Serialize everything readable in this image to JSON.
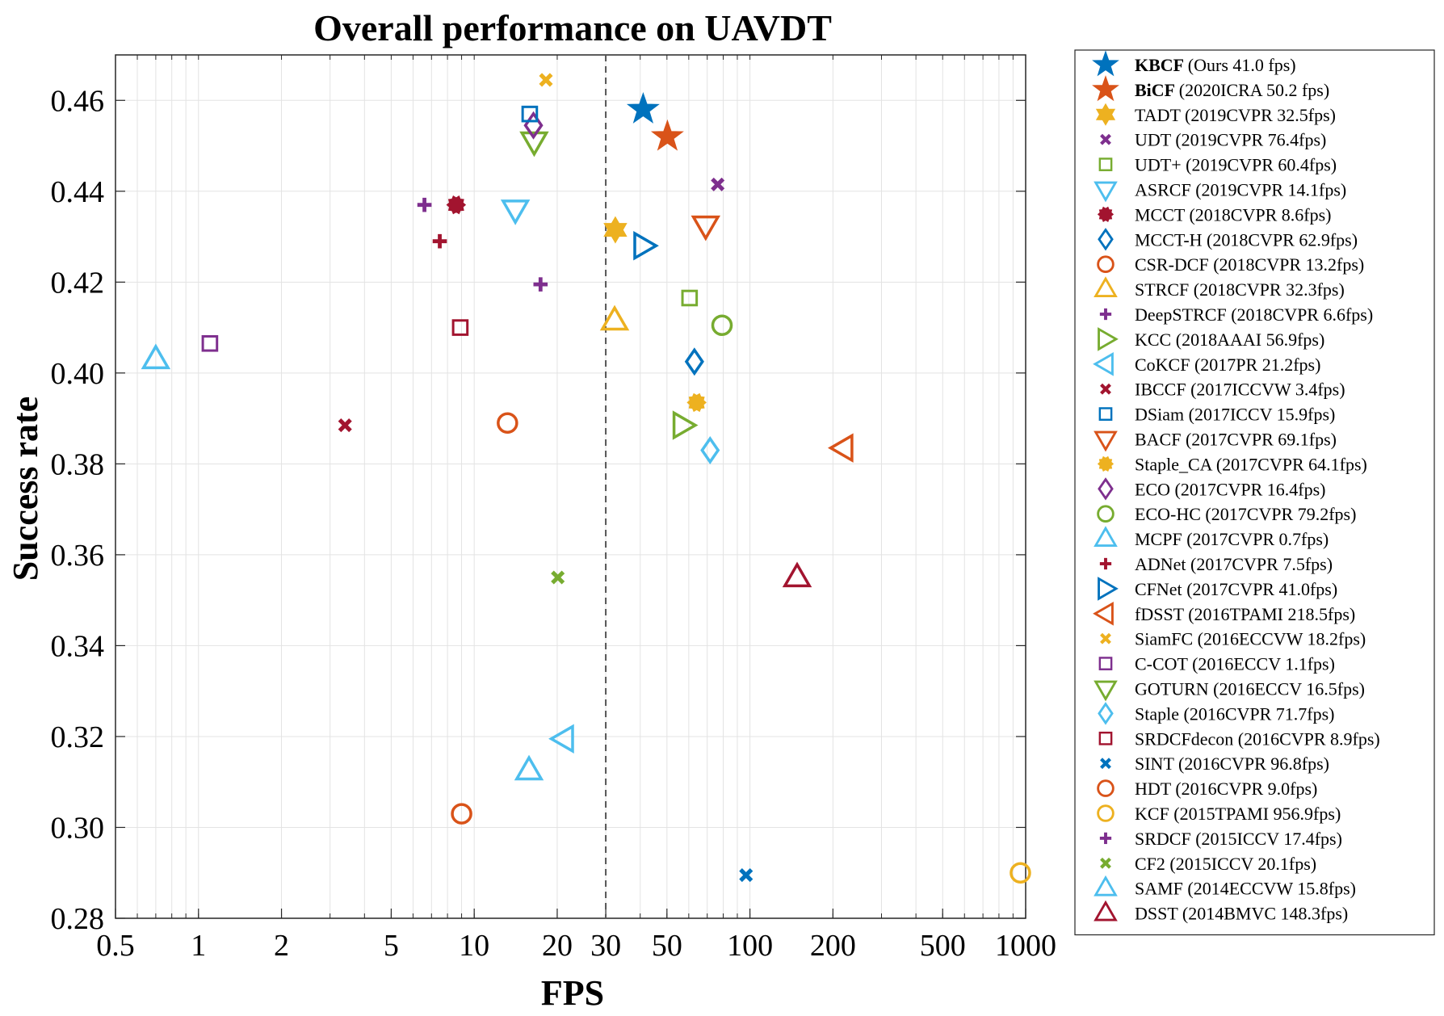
{
  "chart_data": {
    "type": "scatter",
    "title": "Overall performance on UAVDT",
    "xlabel": "FPS",
    "ylabel": "Success rate",
    "xscale": "log",
    "xlim": [
      0.5,
      1000
    ],
    "ylim": [
      0.28,
      0.47
    ],
    "xticks": [
      "0.5",
      "1",
      "2",
      "5",
      "10",
      "20",
      "30",
      "50",
      "100",
      "200",
      "500",
      "1000"
    ],
    "xtick_values": [
      0.5,
      1,
      2,
      5,
      10,
      20,
      30,
      50,
      100,
      200,
      500,
      1000
    ],
    "yticks": [
      "0.28",
      "0.30",
      "0.32",
      "0.34",
      "0.36",
      "0.38",
      "0.40",
      "0.42",
      "0.44",
      "0.46"
    ],
    "ytick_values": [
      0.28,
      0.3,
      0.32,
      0.34,
      0.36,
      0.38,
      0.4,
      0.42,
      0.44,
      0.46
    ],
    "grid": true,
    "reference_line": {
      "x": 30,
      "style": "dashed"
    },
    "legend_position": "outside-right",
    "series": [
      {
        "name": "KBCF",
        "label": "(Ours 41.0 fps)",
        "bold": true,
        "marker": "star",
        "color": "#0072BD",
        "x": 41.0,
        "y": 0.458
      },
      {
        "name": "BiCF",
        "label": "(2020ICRA 50.2 fps)",
        "bold": true,
        "marker": "star",
        "color": "#D95319",
        "x": 50.2,
        "y": 0.452
      },
      {
        "name": "TADT",
        "label": "(2019CVPR 32.5fps)",
        "marker": "hexagram",
        "color": "#EDB120",
        "x": 32.5,
        "y": 0.4315
      },
      {
        "name": "UDT",
        "label": "(2019CVPR 76.4fps)",
        "marker": "x",
        "color": "#7E2F8E",
        "x": 76.4,
        "y": 0.4415
      },
      {
        "name": "UDT+",
        "label": "(2019CVPR 60.4fps)",
        "marker": "square",
        "color": "#77AC30",
        "x": 60.4,
        "y": 0.4165
      },
      {
        "name": "ASRCF",
        "label": "(2019CVPR 14.1fps)",
        "marker": "triangle-down",
        "color": "#4DBEEE",
        "x": 14.1,
        "y": 0.436
      },
      {
        "name": "MCCT",
        "label": "(2018CVPR 8.6fps)",
        "marker": "gear",
        "color": "#A2142F",
        "x": 8.6,
        "y": 0.437
      },
      {
        "name": "MCCT-H",
        "label": "(2018CVPR 62.9fps)",
        "marker": "diamond",
        "color": "#0072BD",
        "x": 62.9,
        "y": 0.4025
      },
      {
        "name": "CSR-DCF",
        "label": "(2018CVPR 13.2fps)",
        "marker": "circle",
        "color": "#D95319",
        "x": 13.2,
        "y": 0.389
      },
      {
        "name": "STRCF",
        "label": "(2018CVPR 32.3fps)",
        "marker": "triangle-up",
        "color": "#EDB120",
        "x": 32.3,
        "y": 0.4115
      },
      {
        "name": "DeepSTRCF",
        "label": "(2018CVPR 6.6fps)",
        "marker": "plus",
        "color": "#7E2F8E",
        "x": 6.6,
        "y": 0.437
      },
      {
        "name": "KCC",
        "label": "(2018AAAI 56.9fps)",
        "marker": "triangle-right",
        "color": "#77AC30",
        "x": 56.9,
        "y": 0.3885
      },
      {
        "name": "CoKCF",
        "label": "(2017PR 21.2fps)",
        "marker": "triangle-left",
        "color": "#4DBEEE",
        "x": 21.2,
        "y": 0.3195
      },
      {
        "name": "IBCCF",
        "label": "(2017ICCVW 3.4fps)",
        "marker": "x",
        "color": "#A2142F",
        "x": 3.4,
        "y": 0.3885
      },
      {
        "name": "DSiam",
        "label": "(2017ICCV 15.9fps)",
        "marker": "square",
        "color": "#0072BD",
        "x": 15.9,
        "y": 0.457
      },
      {
        "name": "BACF",
        "label": "(2017CVPR 69.1fps)",
        "marker": "triangle-down",
        "color": "#D95319",
        "x": 69.1,
        "y": 0.4325
      },
      {
        "name": "Staple_CA",
        "label": "(2017CVPR 64.1fps)",
        "marker": "gear",
        "color": "#EDB120",
        "x": 64.1,
        "y": 0.3935
      },
      {
        "name": "ECO",
        "label": "(2017CVPR 16.4fps)",
        "marker": "diamond",
        "color": "#7E2F8E",
        "x": 16.4,
        "y": 0.4545
      },
      {
        "name": "ECO-HC",
        "label": "(2017CVPR 79.2fps)",
        "marker": "circle",
        "color": "#77AC30",
        "x": 79.2,
        "y": 0.4105
      },
      {
        "name": "MCPF",
        "label": "(2017CVPR 0.7fps)",
        "marker": "triangle-up",
        "color": "#4DBEEE",
        "x": 0.7,
        "y": 0.403
      },
      {
        "name": "ADNet",
        "label": "(2017CVPR 7.5fps)",
        "marker": "plus",
        "color": "#A2142F",
        "x": 7.5,
        "y": 0.429
      },
      {
        "name": "CFNet",
        "label": "(2017CVPR 41.0fps)",
        "marker": "triangle-right",
        "color": "#0072BD",
        "x": 41.0,
        "y": 0.428
      },
      {
        "name": "fDSST",
        "label": "(2016TPAMI 218.5fps)",
        "marker": "triangle-left",
        "color": "#D95319",
        "x": 218.5,
        "y": 0.3835
      },
      {
        "name": "SiamFC",
        "label": "(2016ECCVW 18.2fps)",
        "marker": "x",
        "color": "#EDB120",
        "x": 18.2,
        "y": 0.4645
      },
      {
        "name": "C-COT",
        "label": "(2016ECCV 1.1fps)",
        "marker": "square",
        "color": "#7E2F8E",
        "x": 1.1,
        "y": 0.4065
      },
      {
        "name": "GOTURN",
        "label": "(2016ECCV 16.5fps)",
        "marker": "triangle-down",
        "color": "#77AC30",
        "x": 16.5,
        "y": 0.451
      },
      {
        "name": "Staple",
        "label": "(2016CVPR 71.7fps)",
        "marker": "diamond",
        "color": "#4DBEEE",
        "x": 71.7,
        "y": 0.383
      },
      {
        "name": "SRDCFdecon",
        "label": "(2016CVPR 8.9fps)",
        "marker": "square",
        "color": "#A2142F",
        "x": 8.9,
        "y": 0.41
      },
      {
        "name": "SINT",
        "label": "(2016CVPR 96.8fps)",
        "marker": "x",
        "color": "#0072BD",
        "x": 96.8,
        "y": 0.2895
      },
      {
        "name": "HDT",
        "label": "(2016CVPR 9.0fps)",
        "marker": "circle",
        "color": "#D95319",
        "x": 9.0,
        "y": 0.303
      },
      {
        "name": "KCF",
        "label": "(2015TPAMI 956.9fps)",
        "marker": "circle",
        "color": "#EDB120",
        "x": 956.9,
        "y": 0.29
      },
      {
        "name": "SRDCF",
        "label": "(2015ICCV 17.4fps)",
        "marker": "plus",
        "color": "#7E2F8E",
        "x": 17.4,
        "y": 0.4195
      },
      {
        "name": "CF2",
        "label": "(2015ICCV 20.1fps)",
        "marker": "x",
        "color": "#77AC30",
        "x": 20.1,
        "y": 0.355
      },
      {
        "name": "SAMF",
        "label": "(2014ECCVW 15.8fps)",
        "marker": "triangle-up",
        "color": "#4DBEEE",
        "x": 15.8,
        "y": 0.3125
      },
      {
        "name": "DSST",
        "label": "(2014BMVC 148.3fps)",
        "marker": "triangle-up",
        "color": "#A2142F",
        "x": 148.3,
        "y": 0.355
      }
    ]
  }
}
